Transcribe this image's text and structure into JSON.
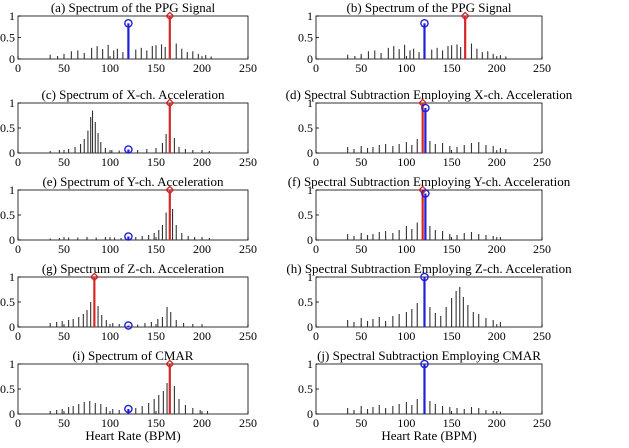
{
  "figure": {
    "xlabel": "Heart Rate (BPM)"
  },
  "chart_data": [
    {
      "type": "bar",
      "title": "(a) Spectrum of the PPG Signal",
      "xlim": [
        0,
        250
      ],
      "ylim": [
        0,
        1
      ],
      "xticks": [
        "0",
        "50",
        "100",
        "150",
        "200",
        "250"
      ],
      "yticks": [
        "0",
        "0.5",
        "1"
      ],
      "peaks": [
        {
          "x": 165,
          "y": 1.0,
          "color": "#d62728",
          "marker": "diamond"
        },
        {
          "x": 120,
          "y": 0.83,
          "color": "#1f1fd6",
          "marker": "circle"
        }
      ],
      "background": [
        [
          35,
          0.1
        ],
        [
          43,
          0.07
        ],
        [
          50,
          0.12
        ],
        [
          58,
          0.18
        ],
        [
          65,
          0.2
        ],
        [
          72,
          0.14
        ],
        [
          80,
          0.26
        ],
        [
          86,
          0.3
        ],
        [
          92,
          0.23
        ],
        [
          98,
          0.33
        ],
        [
          104,
          0.2
        ],
        [
          108,
          0.24
        ],
        [
          114,
          0.16
        ],
        [
          128,
          0.22
        ],
        [
          134,
          0.26
        ],
        [
          140,
          0.2
        ],
        [
          146,
          0.3
        ],
        [
          150,
          0.32
        ],
        [
          156,
          0.34
        ],
        [
          160,
          0.28
        ],
        [
          172,
          0.36
        ],
        [
          178,
          0.24
        ],
        [
          184,
          0.16
        ],
        [
          190,
          0.18
        ],
        [
          196,
          0.12
        ],
        [
          204,
          0.09
        ],
        [
          210,
          0.06
        ]
      ]
    },
    {
      "type": "bar",
      "title": "(b) Spectrum of the PPG Signal",
      "xlim": [
        0,
        250
      ],
      "ylim": [
        0,
        1
      ],
      "xticks": [
        "0",
        "50",
        "100",
        "150",
        "200",
        "250"
      ],
      "yticks": [
        "0",
        "0.5",
        "1"
      ],
      "peaks": [
        {
          "x": 165,
          "y": 1.0,
          "color": "#d62728",
          "marker": "diamond"
        },
        {
          "x": 120,
          "y": 0.83,
          "color": "#1f1fd6",
          "marker": "circle"
        }
      ],
      "background": [
        [
          35,
          0.1
        ],
        [
          43,
          0.07
        ],
        [
          50,
          0.12
        ],
        [
          58,
          0.18
        ],
        [
          65,
          0.2
        ],
        [
          72,
          0.14
        ],
        [
          80,
          0.26
        ],
        [
          86,
          0.3
        ],
        [
          92,
          0.23
        ],
        [
          98,
          0.33
        ],
        [
          104,
          0.2
        ],
        [
          108,
          0.24
        ],
        [
          114,
          0.16
        ],
        [
          128,
          0.22
        ],
        [
          134,
          0.26
        ],
        [
          140,
          0.2
        ],
        [
          146,
          0.3
        ],
        [
          150,
          0.32
        ],
        [
          156,
          0.34
        ],
        [
          160,
          0.28
        ],
        [
          172,
          0.36
        ],
        [
          178,
          0.24
        ],
        [
          184,
          0.16
        ],
        [
          190,
          0.18
        ],
        [
          196,
          0.12
        ],
        [
          204,
          0.09
        ],
        [
          210,
          0.06
        ]
      ]
    },
    {
      "type": "bar",
      "title": "(c) Spectrum of X-ch. Acceleration",
      "xlim": [
        0,
        250
      ],
      "ylim": [
        0,
        1
      ],
      "xticks": [
        "0",
        "50",
        "100",
        "150",
        "200",
        "250"
      ],
      "yticks": [
        "0",
        "0.5",
        "1"
      ],
      "peaks": [
        {
          "x": 165,
          "y": 1.0,
          "color": "#d62728",
          "marker": "diamond"
        },
        {
          "x": 120,
          "y": 0.07,
          "color": "#1f1fd6",
          "marker": "circle"
        }
      ],
      "background": [
        [
          35,
          0.04
        ],
        [
          45,
          0.06
        ],
        [
          55,
          0.08
        ],
        [
          62,
          0.12
        ],
        [
          68,
          0.18
        ],
        [
          72,
          0.28
        ],
        [
          76,
          0.45
        ],
        [
          79,
          0.72
        ],
        [
          81,
          0.85
        ],
        [
          84,
          0.62
        ],
        [
          87,
          0.4
        ],
        [
          90,
          0.22
        ],
        [
          95,
          0.1
        ],
        [
          102,
          0.06
        ],
        [
          110,
          0.05
        ],
        [
          130,
          0.06
        ],
        [
          140,
          0.08
        ],
        [
          150,
          0.1
        ],
        [
          157,
          0.2
        ],
        [
          161,
          0.38
        ],
        [
          170,
          0.3
        ],
        [
          175,
          0.12
        ],
        [
          182,
          0.08
        ],
        [
          190,
          0.06
        ],
        [
          200,
          0.05
        ],
        [
          208,
          0.04
        ]
      ]
    },
    {
      "type": "bar",
      "title": "(d) Spectral Subtraction Employing X-ch. Acceleration",
      "xlim": [
        0,
        250
      ],
      "ylim": [
        0,
        1
      ],
      "xticks": [
        "0",
        "50",
        "100",
        "150",
        "200",
        "250"
      ],
      "yticks": [
        "0",
        "0.5",
        "1"
      ],
      "peaks": [
        {
          "x": 118,
          "y": 1.0,
          "color": "#d62728",
          "marker": "diamond"
        },
        {
          "x": 121,
          "y": 0.9,
          "color": "#1f1fd6",
          "marker": "circle"
        }
      ],
      "background": [
        [
          35,
          0.12
        ],
        [
          42,
          0.08
        ],
        [
          50,
          0.14
        ],
        [
          57,
          0.1
        ],
        [
          63,
          0.12
        ],
        [
          70,
          0.16
        ],
        [
          77,
          0.18
        ],
        [
          85,
          0.14
        ],
        [
          92,
          0.18
        ],
        [
          100,
          0.22
        ],
        [
          106,
          0.16
        ],
        [
          112,
          0.28
        ],
        [
          126,
          0.24
        ],
        [
          132,
          0.18
        ],
        [
          140,
          0.2
        ],
        [
          148,
          0.14
        ],
        [
          156,
          0.12
        ],
        [
          164,
          0.16
        ],
        [
          172,
          0.2
        ],
        [
          180,
          0.22
        ],
        [
          188,
          0.16
        ],
        [
          196,
          0.14
        ],
        [
          204,
          0.1
        ],
        [
          210,
          0.08
        ]
      ]
    },
    {
      "type": "bar",
      "title": "(e) Spectrum of Y-ch. Acceleration",
      "xlim": [
        0,
        250
      ],
      "ylim": [
        0,
        1
      ],
      "xticks": [
        "0",
        "50",
        "100",
        "150",
        "200",
        "250"
      ],
      "yticks": [
        "0",
        "0.5",
        "1"
      ],
      "peaks": [
        {
          "x": 165,
          "y": 1.0,
          "color": "#d62728",
          "marker": "diamond"
        },
        {
          "x": 120,
          "y": 0.07,
          "color": "#1f1fd6",
          "marker": "circle"
        }
      ],
      "background": [
        [
          35,
          0.03
        ],
        [
          45,
          0.04
        ],
        [
          55,
          0.05
        ],
        [
          65,
          0.05
        ],
        [
          75,
          0.06
        ],
        [
          85,
          0.05
        ],
        [
          95,
          0.06
        ],
        [
          105,
          0.05
        ],
        [
          112,
          0.04
        ],
        [
          128,
          0.06
        ],
        [
          135,
          0.08
        ],
        [
          142,
          0.1
        ],
        [
          148,
          0.14
        ],
        [
          153,
          0.2
        ],
        [
          157,
          0.3
        ],
        [
          161,
          0.55
        ],
        [
          168,
          0.62
        ],
        [
          172,
          0.3
        ],
        [
          178,
          0.14
        ],
        [
          185,
          0.08
        ],
        [
          192,
          0.06
        ],
        [
          200,
          0.05
        ],
        [
          208,
          0.04
        ]
      ]
    },
    {
      "type": "bar",
      "title": "(f) Spectral Subtraction Employing Y-ch. Acceleration",
      "xlim": [
        0,
        250
      ],
      "ylim": [
        0,
        1
      ],
      "xticks": [
        "0",
        "50",
        "100",
        "150",
        "200",
        "250"
      ],
      "yticks": [
        "0",
        "0.5",
        "1"
      ],
      "peaks": [
        {
          "x": 118,
          "y": 1.0,
          "color": "#d62728",
          "marker": "diamond"
        },
        {
          "x": 121,
          "y": 0.93,
          "color": "#1f1fd6",
          "marker": "circle"
        }
      ],
      "background": [
        [
          35,
          0.12
        ],
        [
          42,
          0.08
        ],
        [
          50,
          0.14
        ],
        [
          57,
          0.1
        ],
        [
          63,
          0.12
        ],
        [
          70,
          0.16
        ],
        [
          77,
          0.18
        ],
        [
          85,
          0.14
        ],
        [
          92,
          0.2
        ],
        [
          100,
          0.28
        ],
        [
          106,
          0.22
        ],
        [
          112,
          0.35
        ],
        [
          126,
          0.28
        ],
        [
          132,
          0.2
        ],
        [
          140,
          0.18
        ],
        [
          148,
          0.12
        ],
        [
          156,
          0.1
        ],
        [
          164,
          0.14
        ],
        [
          172,
          0.16
        ],
        [
          180,
          0.12
        ],
        [
          188,
          0.1
        ],
        [
          196,
          0.08
        ],
        [
          204,
          0.06
        ]
      ]
    },
    {
      "type": "bar",
      "title": "(g) Spectrum of Z-ch. Acceleration",
      "xlim": [
        0,
        250
      ],
      "ylim": [
        0,
        1
      ],
      "xticks": [
        "0",
        "50",
        "100",
        "150",
        "200",
        "250"
      ],
      "yticks": [
        "0",
        "0.5",
        "1"
      ],
      "peaks": [
        {
          "x": 83,
          "y": 1.0,
          "color": "#d62728",
          "marker": "diamond"
        },
        {
          "x": 120,
          "y": 0.03,
          "color": "#1f1fd6",
          "marker": "circle"
        }
      ],
      "background": [
        [
          35,
          0.08
        ],
        [
          42,
          0.1
        ],
        [
          48,
          0.12
        ],
        [
          55,
          0.14
        ],
        [
          60,
          0.16
        ],
        [
          66,
          0.2
        ],
        [
          71,
          0.26
        ],
        [
          75,
          0.34
        ],
        [
          79,
          0.5
        ],
        [
          87,
          0.42
        ],
        [
          91,
          0.24
        ],
        [
          96,
          0.14
        ],
        [
          103,
          0.08
        ],
        [
          110,
          0.06
        ],
        [
          130,
          0.05
        ],
        [
          138,
          0.08
        ],
        [
          145,
          0.1
        ],
        [
          152,
          0.16
        ],
        [
          157,
          0.2
        ],
        [
          162,
          0.4
        ],
        [
          166,
          0.3
        ],
        [
          172,
          0.14
        ],
        [
          180,
          0.08
        ],
        [
          190,
          0.06
        ],
        [
          200,
          0.04
        ]
      ]
    },
    {
      "type": "bar",
      "title": "(h) Spectral Subtraction Employing Z-ch. Acceleration",
      "xlim": [
        0,
        250
      ],
      "ylim": [
        0,
        1
      ],
      "xticks": [
        "0",
        "50",
        "100",
        "150",
        "200",
        "250"
      ],
      "yticks": [
        "0",
        "0.5",
        "1"
      ],
      "peaks": [
        {
          "x": 120,
          "y": 1.0,
          "color": "#1f1fd6",
          "marker": "circle"
        }
      ],
      "background": [
        [
          35,
          0.14
        ],
        [
          42,
          0.1
        ],
        [
          50,
          0.18
        ],
        [
          57,
          0.12
        ],
        [
          63,
          0.16
        ],
        [
          70,
          0.2
        ],
        [
          77,
          0.12
        ],
        [
          85,
          0.22
        ],
        [
          92,
          0.26
        ],
        [
          100,
          0.3
        ],
        [
          106,
          0.36
        ],
        [
          112,
          0.48
        ],
        [
          126,
          0.4
        ],
        [
          132,
          0.28
        ],
        [
          138,
          0.22
        ],
        [
          144,
          0.4
        ],
        [
          150,
          0.58
        ],
        [
          155,
          0.72
        ],
        [
          159,
          0.8
        ],
        [
          163,
          0.6
        ],
        [
          168,
          0.44
        ],
        [
          174,
          0.3
        ],
        [
          180,
          0.26
        ],
        [
          188,
          0.18
        ],
        [
          196,
          0.14
        ],
        [
          204,
          0.1
        ]
      ]
    },
    {
      "type": "bar",
      "title": "(i) Spectrum of CMAR",
      "xlim": [
        0,
        250
      ],
      "ylim": [
        0,
        1
      ],
      "xticks": [
        "0",
        "50",
        "100",
        "150",
        "200",
        "250"
      ],
      "yticks": [
        "0",
        "0.5",
        "1"
      ],
      "peaks": [
        {
          "x": 165,
          "y": 1.0,
          "color": "#d62728",
          "marker": "diamond"
        },
        {
          "x": 120,
          "y": 0.1,
          "color": "#1f1fd6",
          "marker": "circle"
        }
      ],
      "background": [
        [
          35,
          0.06
        ],
        [
          42,
          0.08
        ],
        [
          48,
          0.1
        ],
        [
          55,
          0.14
        ],
        [
          60,
          0.16
        ],
        [
          66,
          0.2
        ],
        [
          72,
          0.24
        ],
        [
          78,
          0.26
        ],
        [
          84,
          0.22
        ],
        [
          90,
          0.2
        ],
        [
          96,
          0.14
        ],
        [
          103,
          0.1
        ],
        [
          110,
          0.08
        ],
        [
          128,
          0.12
        ],
        [
          135,
          0.16
        ],
        [
          142,
          0.22
        ],
        [
          148,
          0.3
        ],
        [
          153,
          0.38
        ],
        [
          158,
          0.46
        ],
        [
          162,
          0.62
        ],
        [
          170,
          0.56
        ],
        [
          175,
          0.3
        ],
        [
          182,
          0.18
        ],
        [
          190,
          0.12
        ],
        [
          198,
          0.08
        ],
        [
          206,
          0.06
        ]
      ]
    },
    {
      "type": "bar",
      "title": "(j) Spectral Subtraction Employing CMAR",
      "xlim": [
        0,
        250
      ],
      "ylim": [
        0,
        1
      ],
      "xticks": [
        "0",
        "50",
        "100",
        "150",
        "200",
        "250"
      ],
      "yticks": [
        "0",
        "0.5",
        "1"
      ],
      "peaks": [
        {
          "x": 120,
          "y": 1.0,
          "color": "#1f1fd6",
          "marker": "circle"
        }
      ],
      "background": [
        [
          35,
          0.12
        ],
        [
          42,
          0.08
        ],
        [
          50,
          0.16
        ],
        [
          57,
          0.1
        ],
        [
          63,
          0.14
        ],
        [
          70,
          0.18
        ],
        [
          77,
          0.12
        ],
        [
          85,
          0.16
        ],
        [
          92,
          0.2
        ],
        [
          100,
          0.24
        ],
        [
          106,
          0.18
        ],
        [
          112,
          0.3
        ],
        [
          126,
          0.26
        ],
        [
          132,
          0.2
        ],
        [
          140,
          0.16
        ],
        [
          148,
          0.14
        ],
        [
          156,
          0.12
        ],
        [
          164,
          0.1
        ],
        [
          172,
          0.14
        ],
        [
          180,
          0.12
        ],
        [
          188,
          0.08
        ],
        [
          196,
          0.06
        ],
        [
          204,
          0.05
        ]
      ]
    }
  ]
}
